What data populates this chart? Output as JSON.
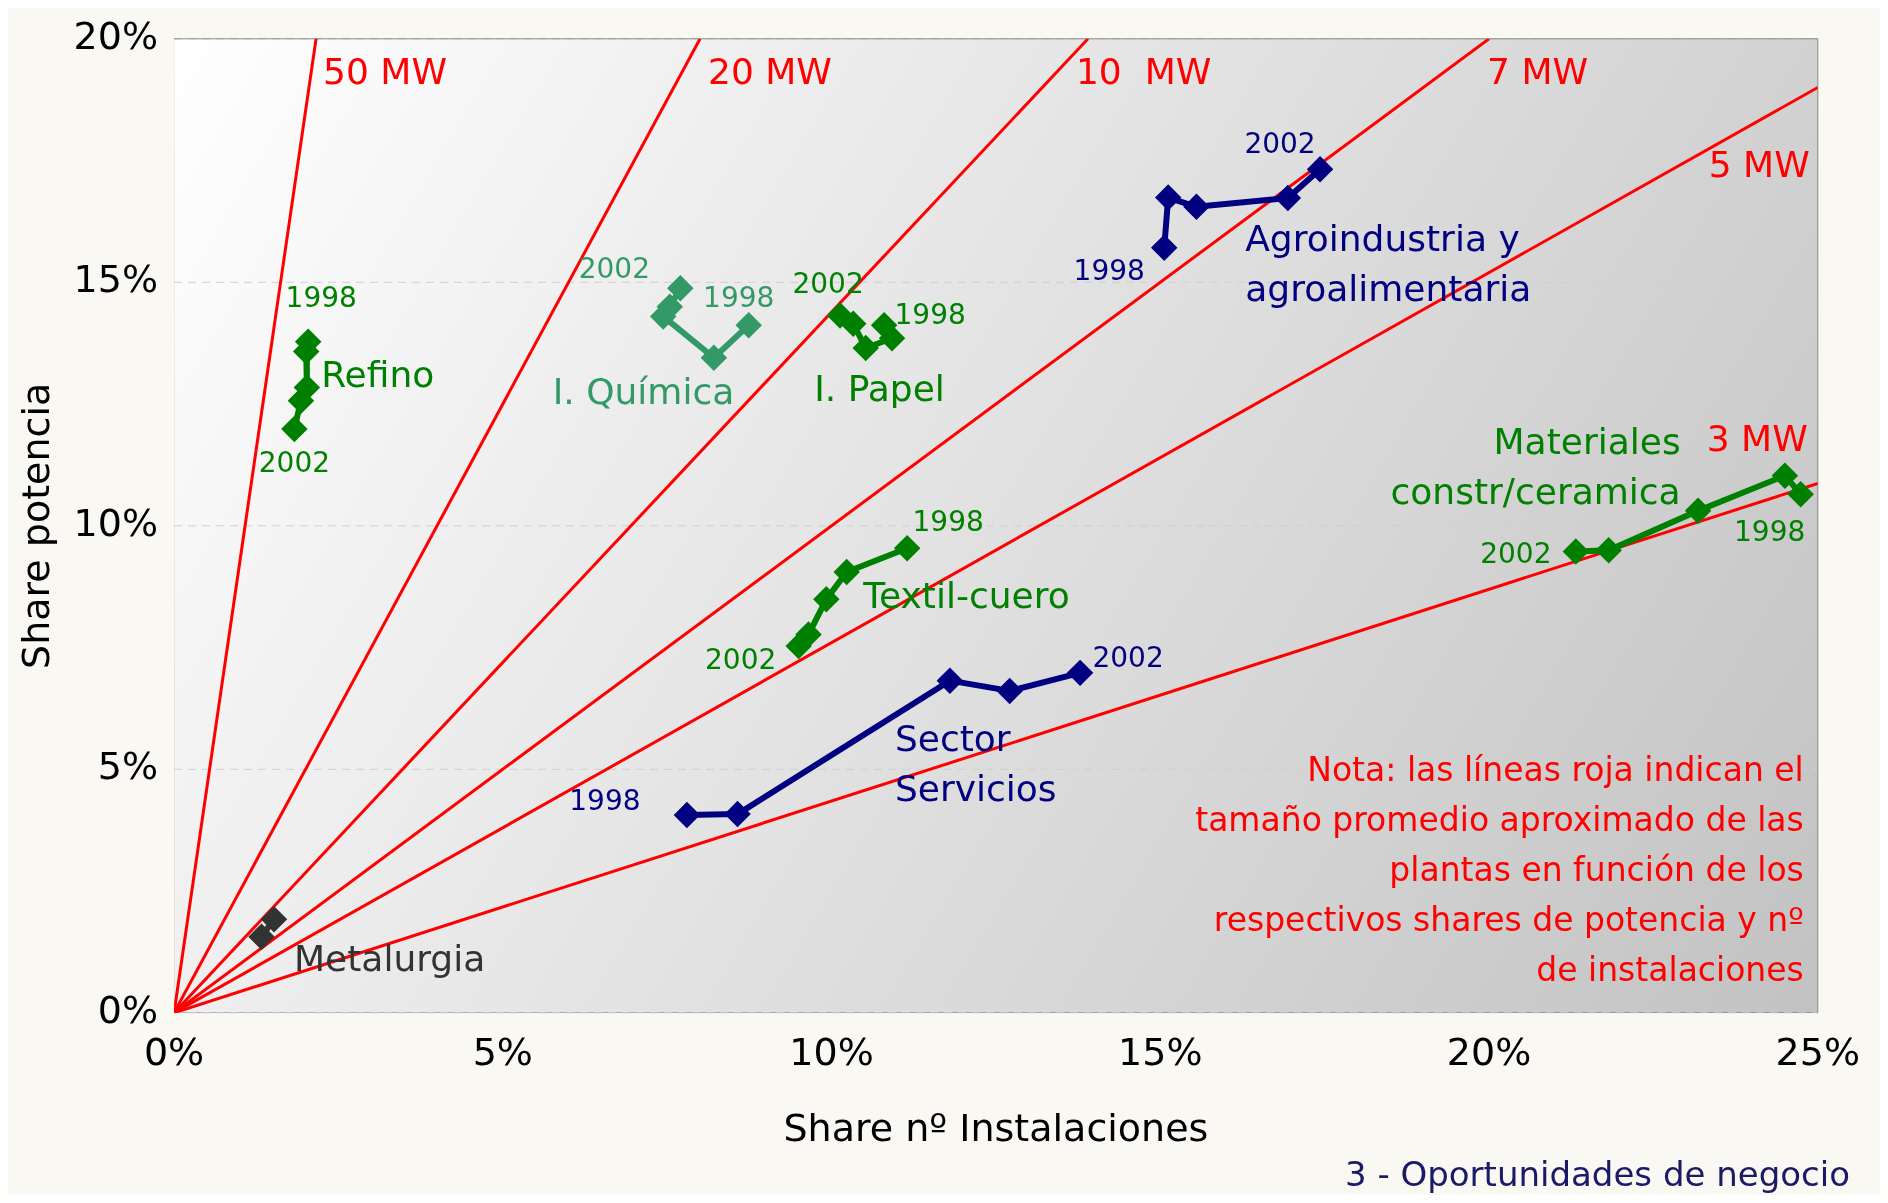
{
  "chart_data": {
    "type": "line",
    "xlabel": "Share nº Instalaciones",
    "ylabel": "Share potencia",
    "xlim": [
      0,
      25
    ],
    "ylim": [
      0,
      20
    ],
    "xticks": [
      {
        "value": 0,
        "label": "0%"
      },
      {
        "value": 5,
        "label": "5%"
      },
      {
        "value": 10,
        "label": "10%"
      },
      {
        "value": 15,
        "label": "15%"
      },
      {
        "value": 20,
        "label": "20%"
      },
      {
        "value": 25,
        "label": "25%"
      }
    ],
    "yticks": [
      {
        "value": 0,
        "label": "0%"
      },
      {
        "value": 5,
        "label": "5%"
      },
      {
        "value": 10,
        "label": "10%"
      },
      {
        "value": 15,
        "label": "15%"
      },
      {
        "value": 20,
        "label": "20%"
      }
    ],
    "grid": "y",
    "legend": false,
    "marker": "diamond",
    "line_style": "solid",
    "series": [
      {
        "name": "50 MW",
        "color": "#ff0000",
        "marker": "none",
        "x": [
          0,
          2.16
        ],
        "values": [
          0,
          20
        ]
      },
      {
        "name": "20 MW",
        "color": "#ff0000",
        "marker": "none",
        "x": [
          0,
          8
        ],
        "values": [
          0,
          20
        ]
      },
      {
        "name": "10  MW",
        "color": "#ff0000",
        "marker": "none",
        "x": [
          0,
          13.9
        ],
        "values": [
          0,
          20
        ]
      },
      {
        "name": "7 MW",
        "color": "#ff0000",
        "marker": "none",
        "x": [
          0,
          20
        ],
        "values": [
          0,
          20
        ]
      },
      {
        "name": "5 MW",
        "color": "#ff0000",
        "marker": "none",
        "x": [
          0,
          25
        ],
        "values": [
          0,
          19
        ]
      },
      {
        "name": "3 MW",
        "color": "#ff0000",
        "marker": "none",
        "x": [
          0,
          25
        ],
        "values": [
          0,
          10.87
        ]
      },
      {
        "name": "Refino",
        "color": "#008000",
        "x": [
          2.04,
          2.01,
          2.02,
          1.93,
          1.83
        ],
        "values": [
          13.78,
          13.58,
          12.84,
          12.57,
          11.99
        ]
      },
      {
        "name": "I. Química",
        "color": "#339966",
        "x": [
          8.74,
          8.21,
          7.44,
          7.54,
          7.7
        ],
        "values": [
          14.12,
          13.45,
          14.3,
          14.5,
          14.88
        ]
      },
      {
        "name": "I. Papel",
        "color": "#008000",
        "x": [
          10.8,
          10.92,
          10.52,
          10.33,
          10.13
        ],
        "values": [
          14.12,
          13.85,
          13.65,
          14.15,
          14.32
        ]
      },
      {
        "name": "Agroindustria y agroalimentaria",
        "color": "#000080",
        "x": [
          15.06,
          15.12,
          15.55,
          16.94,
          17.43
        ],
        "values": [
          15.71,
          16.74,
          16.55,
          16.73,
          17.32
        ]
      },
      {
        "name": "Textil-cuero",
        "color": "#008000",
        "x": [
          11.15,
          10.23,
          9.92,
          9.65,
          9.5
        ],
        "values": [
          9.54,
          9.05,
          8.49,
          7.77,
          7.53
        ]
      },
      {
        "name": "Sector Servicios",
        "color": "#000080",
        "x": [
          7.8,
          8.57,
          11.8,
          12.71,
          13.78
        ],
        "values": [
          4.06,
          4.08,
          6.82,
          6.61,
          6.98
        ]
      },
      {
        "name": "Materiales constr/ceramica",
        "color": "#008000",
        "x": [
          24.74,
          24.5,
          23.18,
          21.82,
          21.32
        ],
        "values": [
          10.65,
          11.03,
          10.31,
          9.5,
          9.47
        ]
      },
      {
        "name": "Metalurgia",
        "color": "#333333",
        "x": [
          1.52,
          1.33
        ],
        "values": [
          1.92,
          1.56
        ]
      }
    ],
    "annotations": [
      {
        "text": "1998",
        "x": 2.04,
        "y": 13.78
      },
      {
        "text": "2002",
        "x": 1.83,
        "y": 11.99
      },
      {
        "text": "1998",
        "x": 8.74,
        "y": 14.12
      },
      {
        "text": "2002",
        "x": 7.7,
        "y": 14.88
      },
      {
        "text": "1998",
        "x": 10.8,
        "y": 14.12
      },
      {
        "text": "2002",
        "x": 10.13,
        "y": 14.32
      },
      {
        "text": "1998",
        "x": 15.06,
        "y": 15.71
      },
      {
        "text": "2002",
        "x": 17.43,
        "y": 17.32
      },
      {
        "text": "1998",
        "x": 11.15,
        "y": 9.54
      },
      {
        "text": "2002",
        "x": 9.5,
        "y": 7.53
      },
      {
        "text": "1998",
        "x": 7.8,
        "y": 4.06
      },
      {
        "text": "2002",
        "x": 13.78,
        "y": 6.98
      },
      {
        "text": "1998",
        "x": 24.74,
        "y": 10.65
      },
      {
        "text": "2002",
        "x": 21.32,
        "y": 9.47
      },
      "Nota: las líneas roja indican el tamaño promedio aproximado de las plantas en función de los respectivos shares de potencia y nº de instalaciones",
      "3 - Oportunidades de negocio"
    ]
  }
}
